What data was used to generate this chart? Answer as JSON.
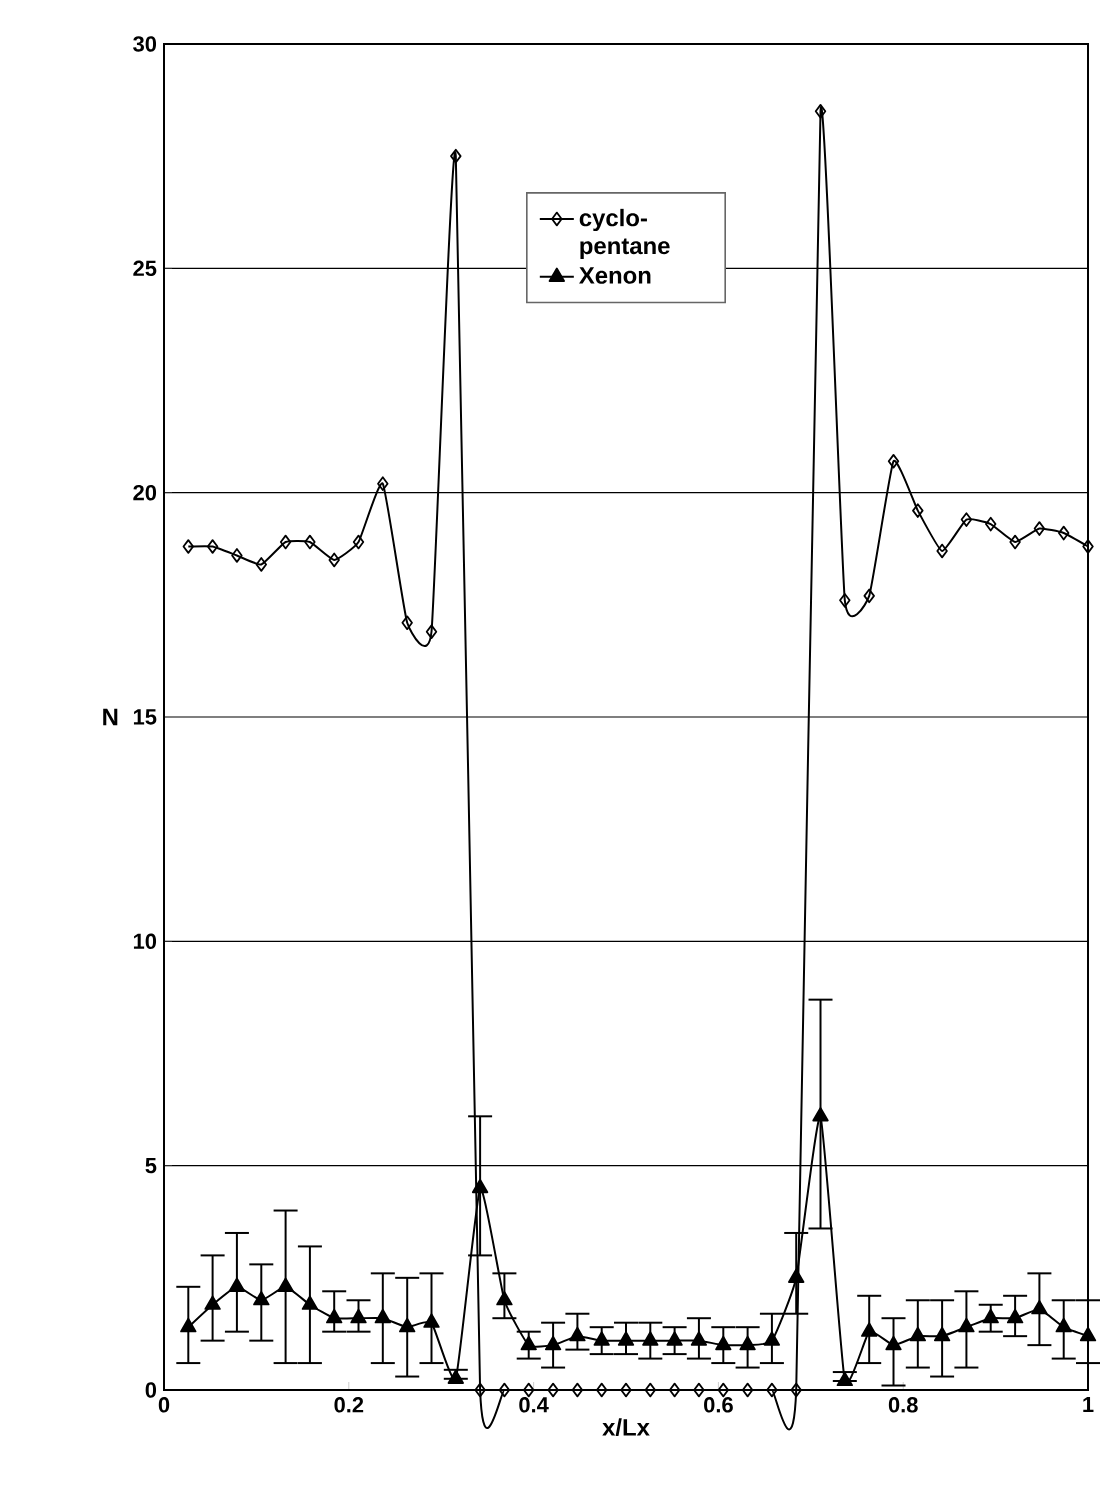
{
  "chart_data": {
    "type": "line",
    "xlabel": "x/Lx",
    "ylabel": "N",
    "x": [
      0.0263,
      0.0526,
      0.0789,
      0.1053,
      0.1316,
      0.1579,
      0.1842,
      0.2105,
      0.2368,
      0.2632,
      0.2895,
      0.3158,
      0.3421,
      0.3684,
      0.3947,
      0.4211,
      0.4474,
      0.4737,
      0.5,
      0.5263,
      0.5526,
      0.5789,
      0.6053,
      0.6316,
      0.6579,
      0.6842,
      0.7105,
      0.7368,
      0.7632,
      0.7895,
      0.8158,
      0.8421,
      0.8684,
      0.8947,
      0.9211,
      0.9474,
      0.9737,
      1.0
    ],
    "series": [
      {
        "name": "cyclo-pentane",
        "color": "#000000",
        "marker": "diamond",
        "values": [
          18.8,
          18.8,
          18.6,
          18.4,
          18.9,
          18.9,
          18.5,
          18.9,
          20.2,
          17.1,
          16.9,
          27.5,
          0,
          0,
          0,
          0,
          0,
          0,
          0,
          0,
          0,
          0,
          0,
          0,
          0,
          0,
          28.5,
          17.6,
          17.7,
          20.7,
          19.6,
          18.7,
          19.4,
          19.3,
          18.9,
          19.2,
          19.1,
          18.8
        ]
      },
      {
        "name": "Xenon",
        "color": "#000000",
        "marker": "triangle",
        "values": [
          1.4,
          1.9,
          2.3,
          2.0,
          2.3,
          1.9,
          1.6,
          1.6,
          1.6,
          1.4,
          1.5,
          0.25,
          4.5,
          2.0,
          1.0,
          1.0,
          1.2,
          1.1,
          1.1,
          1.1,
          1.1,
          1.1,
          1.0,
          1.0,
          1.1,
          2.5,
          6.1,
          0.2,
          1.3,
          1.0,
          1.2,
          1.2,
          1.4,
          1.6,
          1.6,
          1.8,
          1.4,
          1.2
        ],
        "errors": [
          [
            0.6,
            2.3
          ],
          [
            1.1,
            3.0
          ],
          [
            1.3,
            3.5
          ],
          [
            1.1,
            2.8
          ],
          [
            0.6,
            4.0
          ],
          [
            0.6,
            3.2
          ],
          [
            1.3,
            2.2
          ],
          [
            1.3,
            2.0
          ],
          [
            0.6,
            2.6
          ],
          [
            0.3,
            2.5
          ],
          [
            0.6,
            2.6
          ],
          [
            0.25,
            0.45
          ],
          [
            3.0,
            6.1
          ],
          [
            1.6,
            2.6
          ],
          [
            0.7,
            1.3
          ],
          [
            0.5,
            1.5
          ],
          [
            0.9,
            1.7
          ],
          [
            0.8,
            1.4
          ],
          [
            0.8,
            1.5
          ],
          [
            0.7,
            1.5
          ],
          [
            0.8,
            1.4
          ],
          [
            0.7,
            1.6
          ],
          [
            0.6,
            1.4
          ],
          [
            0.5,
            1.4
          ],
          [
            0.6,
            1.7
          ],
          [
            1.7,
            3.5
          ],
          [
            3.6,
            8.7
          ],
          [
            0.2,
            0.4
          ],
          [
            0.6,
            2.1
          ],
          [
            0.1,
            1.6
          ],
          [
            0.5,
            2.0
          ],
          [
            0.3,
            2.0
          ],
          [
            0.5,
            2.2
          ],
          [
            1.3,
            1.9
          ],
          [
            1.2,
            2.1
          ],
          [
            1.0,
            2.6
          ],
          [
            0.7,
            2.0
          ],
          [
            0.6,
            2.0
          ]
        ]
      }
    ],
    "xlim": [
      0,
      1
    ],
    "ylim": [
      0,
      30
    ],
    "xticks": [
      0,
      0.2,
      0.4,
      0.6,
      0.8,
      1
    ],
    "yticks": [
      0,
      5,
      10,
      15,
      20,
      25,
      30
    ],
    "grid": "y",
    "legend": "top",
    "line_style": "solid"
  }
}
